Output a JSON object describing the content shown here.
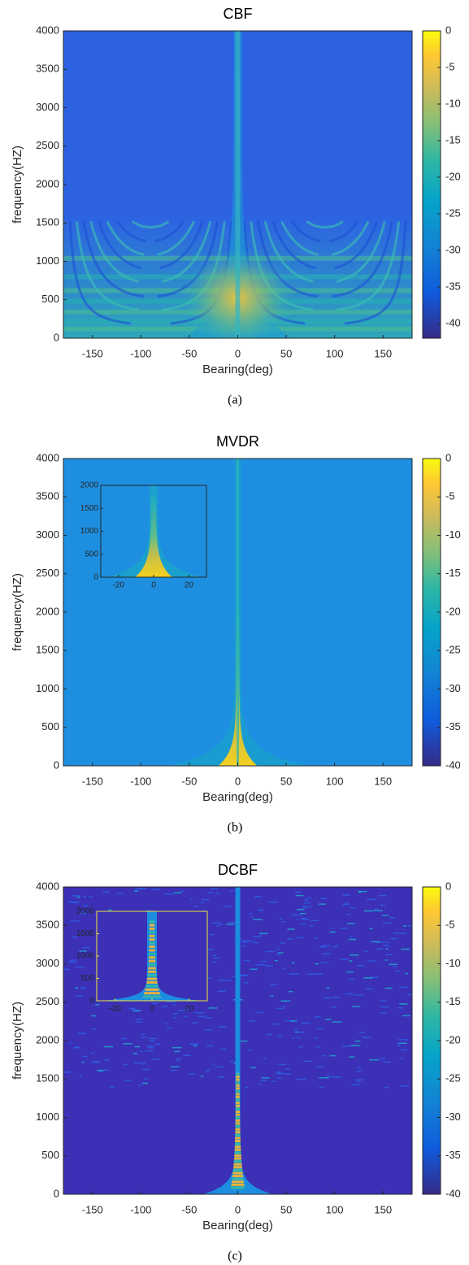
{
  "chart_data": [
    {
      "type": "heatmap",
      "title": "CBF",
      "xlabel": "Bearing(deg)",
      "ylabel": "frequency(HZ)",
      "xlim": [
        -180,
        180
      ],
      "xticks": [
        -150,
        -100,
        -50,
        0,
        50,
        100,
        150
      ],
      "ylim": [
        0,
        4000
      ],
      "yticks": [
        0,
        500,
        1000,
        1500,
        2000,
        2500,
        3000,
        3500,
        4000
      ],
      "clim": [
        -42,
        0
      ],
      "cticks": [
        0,
        -5,
        -10,
        -15,
        -20,
        -25,
        -30,
        -35,
        -40
      ],
      "colormap": "parula",
      "caption": "(a)"
    },
    {
      "type": "heatmap",
      "title": "MVDR",
      "xlabel": "Bearing(deg)",
      "ylabel": "frequency(HZ)",
      "xlim": [
        -180,
        180
      ],
      "xticks": [
        -150,
        -100,
        -50,
        0,
        50,
        100,
        150
      ],
      "ylim": [
        0,
        4000
      ],
      "yticks": [
        0,
        500,
        1000,
        1500,
        2000,
        2500,
        3000,
        3500,
        4000
      ],
      "clim": [
        -40,
        0
      ],
      "cticks": [
        0,
        -5,
        -10,
        -15,
        -20,
        -25,
        -30,
        -35,
        -40
      ],
      "colormap": "parula",
      "inset": {
        "xlim": [
          -30,
          30
        ],
        "xticks": [
          -20,
          0,
          20
        ],
        "ylim": [
          0,
          2000
        ],
        "yticks": [
          0,
          500,
          1000,
          1500,
          2000
        ],
        "color": "#262626"
      },
      "caption": "(b)"
    },
    {
      "type": "heatmap",
      "title": "DCBF",
      "xlabel": "Bearing(deg)",
      "ylabel": "frequency(HZ)",
      "xlim": [
        -180,
        180
      ],
      "xticks": [
        -150,
        -100,
        -50,
        0,
        50,
        100,
        150
      ],
      "ylim": [
        0,
        4000
      ],
      "yticks": [
        0,
        500,
        1000,
        1500,
        2000,
        2500,
        3000,
        3500,
        4000
      ],
      "clim": [
        -40,
        0
      ],
      "cticks": [
        0,
        -5,
        -10,
        -15,
        -20,
        -25,
        -30,
        -35,
        -40
      ],
      "colormap": "parula",
      "inset": {
        "xlim": [
          -30,
          30
        ],
        "xticks": [
          -20,
          0,
          20
        ],
        "ylim": [
          0,
          2000
        ],
        "yticks": [
          0,
          500,
          1000,
          1500,
          2000
        ],
        "color": "#f2e33a"
      },
      "caption": "(c)"
    }
  ]
}
